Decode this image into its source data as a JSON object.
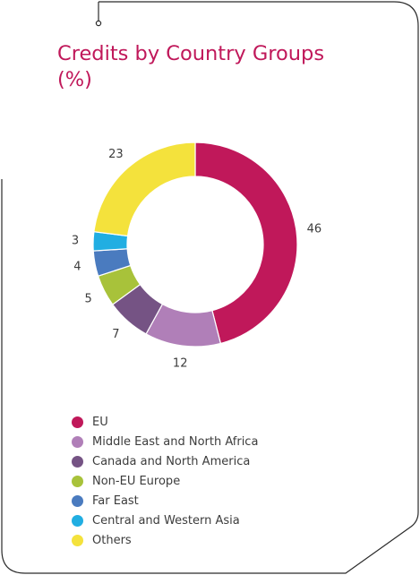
{
  "chart_data": {
    "type": "pie",
    "title": "Credits by Country Groups",
    "subtitle": "(%)",
    "categories": [
      "EU",
      "Middle East and North Africa",
      "Canada and North America",
      "Non-EU Europe",
      "Far East",
      "Central and Western Asia",
      "Others"
    ],
    "values": [
      46,
      12,
      7,
      5,
      4,
      3,
      23
    ],
    "colors": [
      "#c0185a",
      "#b07fb8",
      "#755384",
      "#a8c23a",
      "#4a7bbf",
      "#21aee2",
      "#f4e23c"
    ],
    "legend_position": "bottom",
    "donut": true
  }
}
